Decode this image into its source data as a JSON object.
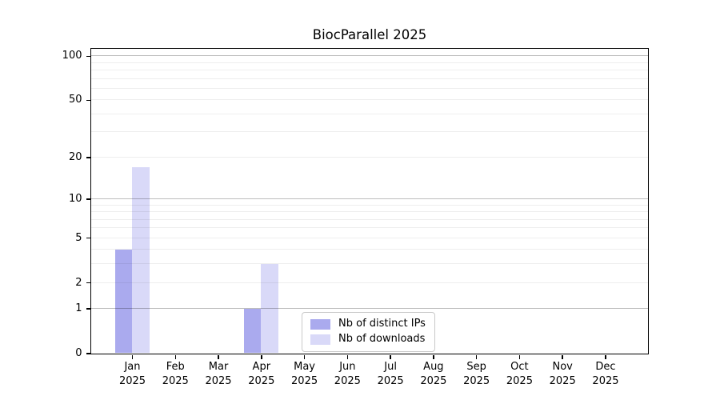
{
  "chart_data": {
    "type": "bar",
    "title": "BiocParallel 2025",
    "categories": [
      "Jan",
      "Feb",
      "Mar",
      "Apr",
      "May",
      "Jun",
      "Jul",
      "Aug",
      "Sep",
      "Oct",
      "Nov",
      "Dec"
    ],
    "x_year_label": "2025",
    "series": [
      {
        "name": "Nb of distinct IPs",
        "color": "#aaaaee",
        "values": [
          4,
          0,
          0,
          1,
          0,
          0,
          0,
          0,
          0,
          0,
          0,
          0
        ]
      },
      {
        "name": "Nb of downloads",
        "color": "#d9d9f8",
        "values": [
          17,
          0,
          0,
          3,
          0,
          0,
          0,
          0,
          0,
          0,
          0,
          0
        ]
      }
    ],
    "yscale": "log1p",
    "ylim": [
      0,
      112.3
    ],
    "yticks": [
      0,
      1,
      2,
      5,
      10,
      20,
      50,
      100
    ],
    "major_gridlines": [
      1,
      10,
      100
    ],
    "minor_gridlines": [
      2,
      3,
      4,
      5,
      6,
      7,
      8,
      9,
      20,
      30,
      40,
      50,
      60,
      70,
      80,
      90
    ],
    "grid": "horizontal",
    "legend_position": "lower center"
  }
}
